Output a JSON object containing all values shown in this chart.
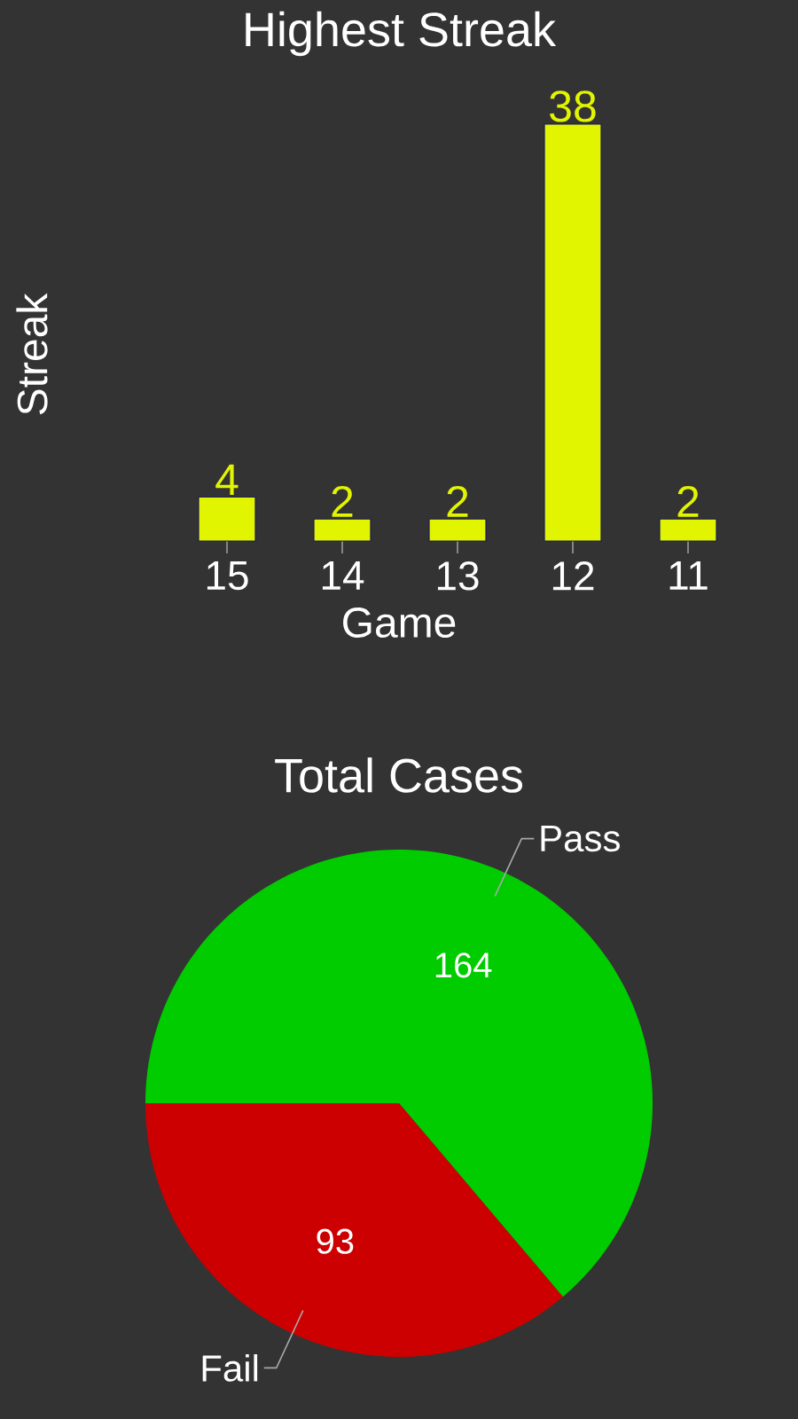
{
  "chart_data": [
    {
      "type": "bar",
      "title": "Highest Streak",
      "xlabel": "Game",
      "ylabel": "Streak",
      "categories": [
        "15",
        "14",
        "13",
        "12",
        "11"
      ],
      "values": [
        4,
        2,
        2,
        38,
        2
      ],
      "color": "#e1f400",
      "data_labels": true
    },
    {
      "type": "pie",
      "title": "Total Cases",
      "categories": [
        "Pass",
        "Fail"
      ],
      "values": [
        164,
        93
      ],
      "colors": [
        "#00cc00",
        "#cc0000"
      ],
      "data_labels": true
    }
  ]
}
